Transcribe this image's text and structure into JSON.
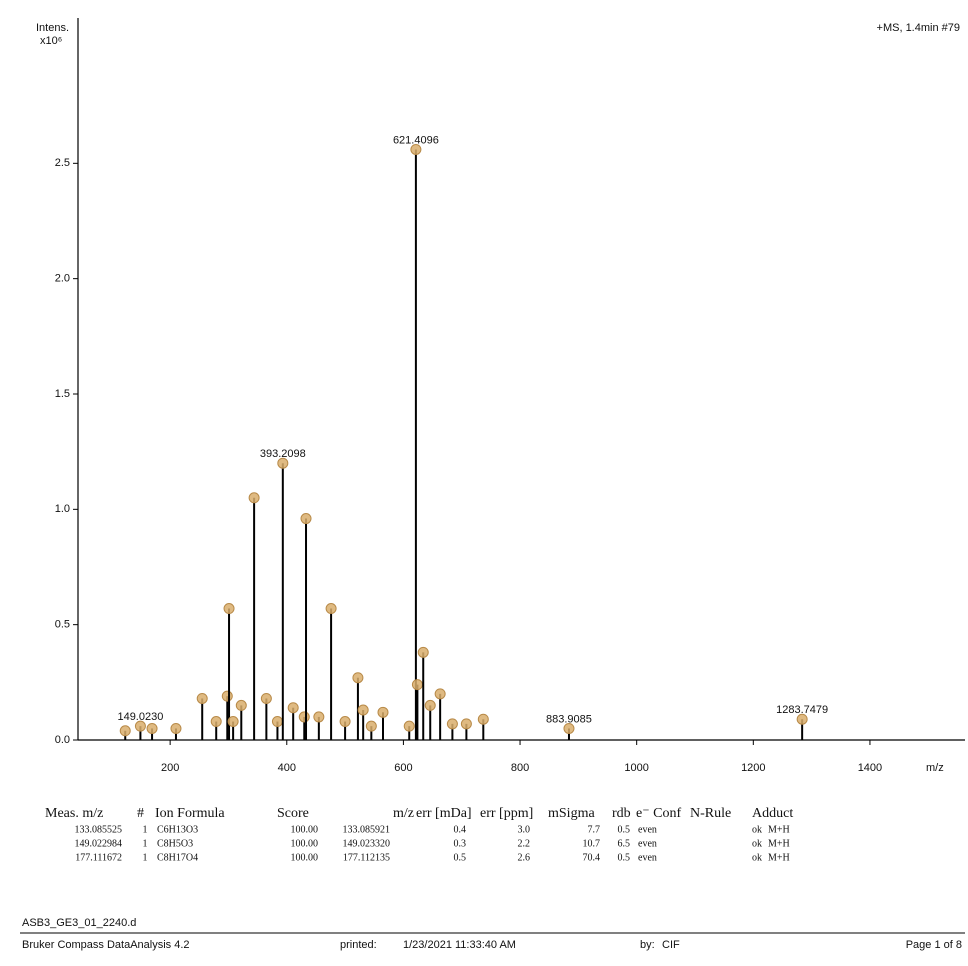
{
  "chart_data": {
    "type": "stem",
    "subtitle": "+MS, 1.4min #79",
    "ylabel_lines": [
      "Intens.",
      "x10⁶"
    ],
    "xlabel": "m/z",
    "color": "#000000",
    "marker_color": "#d9ae6c",
    "x": [
      123,
      149.023,
      169,
      210,
      255,
      279,
      298,
      301,
      308,
      322,
      344,
      365,
      384,
      393.2098,
      411,
      430,
      433,
      455,
      476,
      500,
      522,
      531,
      545,
      565,
      610,
      621.4096,
      624,
      634,
      646,
      663,
      684,
      708,
      737,
      883.9085,
      1283.7479
    ],
    "values": [
      0.04,
      0.06,
      0.05,
      0.05,
      0.18,
      0.08,
      0.19,
      0.57,
      0.08,
      0.15,
      1.05,
      0.18,
      0.08,
      1.2,
      0.14,
      0.1,
      0.96,
      0.1,
      0.57,
      0.08,
      0.27,
      0.13,
      0.06,
      0.12,
      0.06,
      2.56,
      0.24,
      0.38,
      0.15,
      0.2,
      0.07,
      0.07,
      0.09,
      0.05,
      0.09
    ],
    "annotations": [
      {
        "text": "149.0230",
        "x": 149.023,
        "y": 0.06
      },
      {
        "text": "393.2098",
        "x": 393.2098,
        "y": 1.2
      },
      {
        "text": "621.4096",
        "x": 621.4096,
        "y": 2.56
      },
      {
        "text": "883.9085",
        "x": 883.9085,
        "y": 0.05
      },
      {
        "text": "1283.7479",
        "x": 1283.7479,
        "y": 0.09
      }
    ],
    "xlim": [
      42,
      1563
    ],
    "ylim": [
      0,
      3.13
    ],
    "xticks": [
      200,
      400,
      600,
      800,
      1000,
      1200,
      1400
    ],
    "yticks": [
      {
        "value": 0,
        "label": "0.0"
      },
      {
        "value": 0.5,
        "label": "0.5"
      },
      {
        "value": 1,
        "label": "1.0"
      },
      {
        "value": 1.5,
        "label": "1.5"
      },
      {
        "value": 2,
        "label": "2.0"
      },
      {
        "value": 2.5,
        "label": "2.5"
      }
    ]
  },
  "table": {
    "header": [
      "Meas. m/z",
      "#",
      "Ion Formula",
      "Score",
      "m/z",
      "err [mDa]",
      "err [ppm]",
      "mSigma",
      "rdb",
      "e⁻ Conf",
      "N-Rule",
      "Adduct"
    ],
    "rows": [
      [
        "133.085525",
        "1",
        "C6H13O3",
        "100.00",
        "133.085921",
        "0.4",
        "3.0",
        "7.7",
        "0.5",
        "even",
        "ok",
        "M+H"
      ],
      [
        "149.022984",
        "1",
        "C8H5O3",
        "100.00",
        "149.023320",
        "0.3",
        "2.2",
        "10.7",
        "6.5",
        "even",
        "ok",
        "M+H"
      ],
      [
        "177.111672",
        "1",
        "C8H17O4",
        "100.00",
        "177.112135",
        "0.5",
        "2.6",
        "70.4",
        "0.5",
        "even",
        "ok",
        "M+H"
      ]
    ]
  },
  "footer": {
    "file": "ASB3_GE3_01_2240.d",
    "software": "Bruker Compass DataAnalysis 4.2",
    "printed_label": "printed:",
    "printed": "1/23/2021 11:33:40 AM",
    "by_label": "by:",
    "by": "CIF",
    "page": "Page 1 of 8"
  }
}
